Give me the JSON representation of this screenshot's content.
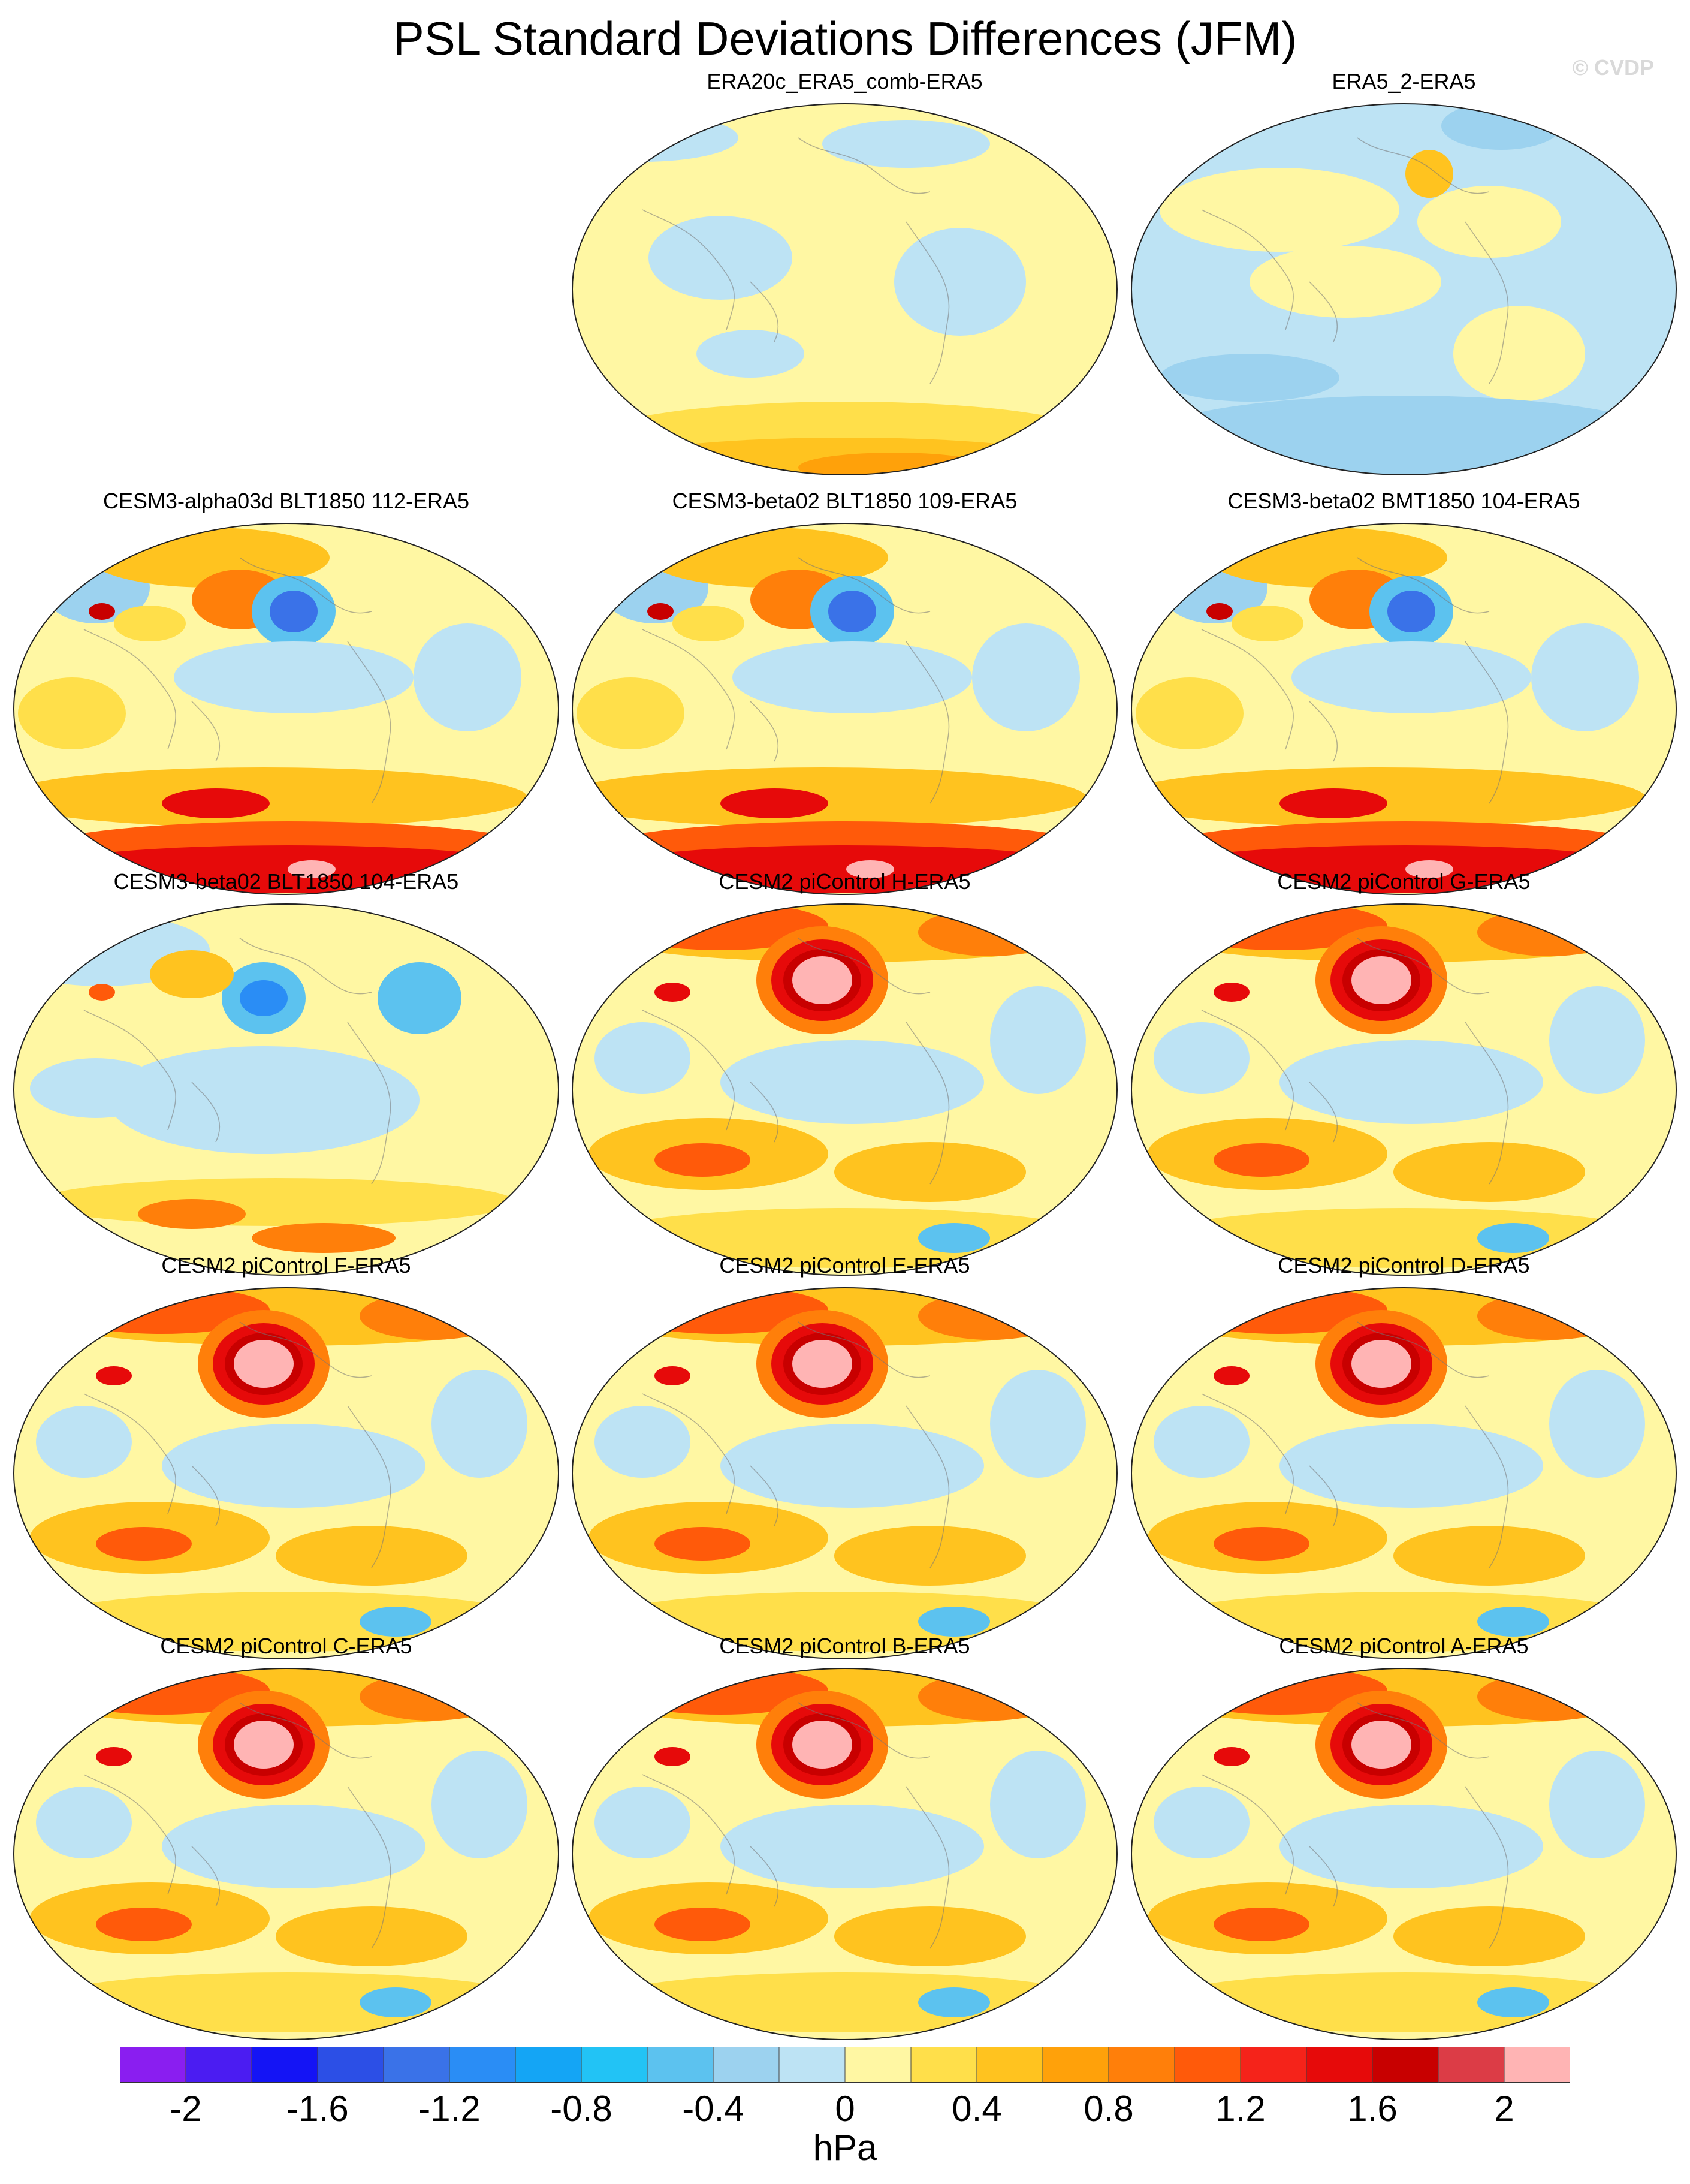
{
  "figure": {
    "title": "PSL Standard Deviations Differences (JFM)",
    "watermark": "© CVDP"
  },
  "panels": [
    {
      "label": "ERA20c_ERA5_comb-ERA5",
      "pattern": "weak-positive"
    },
    {
      "label": "ERA5_2-ERA5",
      "pattern": "weak-negative"
    },
    {
      "label": "CESM3-alpha03d BLT1850 112-ERA5",
      "pattern": "strong-south"
    },
    {
      "label": "CESM3-beta02 BLT1850 109-ERA5",
      "pattern": "strong-south"
    },
    {
      "label": "CESM3-beta02 BMT1850 104-ERA5",
      "pattern": "strong-south"
    },
    {
      "label": "CESM3-beta02 BLT1850 104-ERA5",
      "pattern": "mixed"
    },
    {
      "label": "CESM2 piControl H-ERA5",
      "pattern": "north-pacific-max"
    },
    {
      "label": "CESM2 piControl G-ERA5",
      "pattern": "north-pacific-max"
    },
    {
      "label": "CESM2 piControl F-ERA5",
      "pattern": "north-pacific-max"
    },
    {
      "label": "CESM2 piControl E-ERA5",
      "pattern": "north-pacific-max"
    },
    {
      "label": "CESM2 piControl D-ERA5",
      "pattern": "north-pacific-max"
    },
    {
      "label": "CESM2 piControl C-ERA5",
      "pattern": "north-pacific-max"
    },
    {
      "label": "CESM2 piControl B-ERA5",
      "pattern": "north-pacific-max"
    },
    {
      "label": "CESM2 piControl A-ERA5",
      "pattern": "north-pacific-max"
    }
  ],
  "colorbar": {
    "units": "hPa",
    "tick_labels": [
      "-2",
      "-1.6",
      "-1.2",
      "-0.8",
      "-0.4",
      "0",
      "0.4",
      "0.8",
      "1.2",
      "1.6",
      "2"
    ],
    "tick_values": [
      -2,
      -1.6,
      -1.2,
      -0.8,
      -0.4,
      0,
      0.4,
      0.8,
      1.2,
      1.6,
      2
    ],
    "colors": [
      "#8a1ef0",
      "#4b1cf2",
      "#1414f5",
      "#2c4fe6",
      "#3a72e8",
      "#2a8df5",
      "#14a5f5",
      "#22c3f5",
      "#5cc2ef",
      "#9cd2ef",
      "#bde3f4",
      "#fff7a3",
      "#ffdf4a",
      "#ffc31f",
      "#ffa10a",
      "#ff7f0a",
      "#ff5a0a",
      "#f5231a",
      "#e60a0a",
      "#c80000",
      "#dc3c46",
      "#ffb4b4"
    ]
  }
}
